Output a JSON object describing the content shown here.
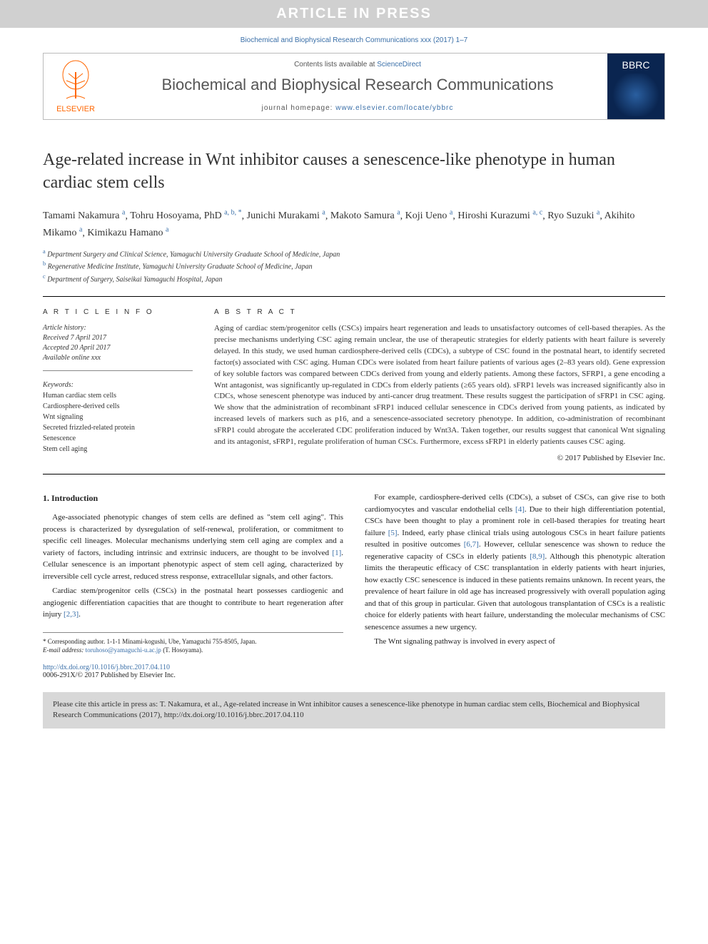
{
  "banner": "ARTICLE IN PRESS",
  "citation_header": "Biochemical and Biophysical Research Communications xxx (2017) 1–7",
  "header": {
    "contents_prefix": "Contents lists available at ",
    "contents_link": "ScienceDirect",
    "journal_name": "Biochemical and Biophysical Research Communications",
    "homepage_prefix": "journal homepage: ",
    "homepage_url": "www.elsevier.com/locate/ybbrc",
    "elsevier": "ELSEVIER",
    "cover_abbrev": "BBRC"
  },
  "title": "Age-related increase in Wnt inhibitor causes a senescence-like phenotype in human cardiac stem cells",
  "authors": [
    {
      "name": "Tamami Nakamura",
      "aff": "a"
    },
    {
      "name": "Tohru Hosoyama, PhD",
      "aff": "a, b, *"
    },
    {
      "name": "Junichi Murakami",
      "aff": "a"
    },
    {
      "name": "Makoto Samura",
      "aff": "a"
    },
    {
      "name": "Koji Ueno",
      "aff": "a"
    },
    {
      "name": "Hiroshi Kurazumi",
      "aff": "a, c"
    },
    {
      "name": "Ryo Suzuki",
      "aff": "a"
    },
    {
      "name": "Akihito Mikamo",
      "aff": "a"
    },
    {
      "name": "Kimikazu Hamano",
      "aff": "a"
    }
  ],
  "affiliations": [
    {
      "sup": "a",
      "text": "Department Surgery and Clinical Science, Yamaguchi University Graduate School of Medicine, Japan"
    },
    {
      "sup": "b",
      "text": "Regenerative Medicine Institute, Yamaguchi University Graduate School of Medicine, Japan"
    },
    {
      "sup": "c",
      "text": "Department of Surgery, Saiseikai Yamaguchi Hospital, Japan"
    }
  ],
  "article_info_label": "A R T I C L E   I N F O",
  "abstract_label": "A B S T R A C T",
  "history": {
    "label": "Article history:",
    "received": "Received 7 April 2017",
    "accepted": "Accepted 20 April 2017",
    "online": "Available online xxx"
  },
  "keywords_label": "Keywords:",
  "keywords": [
    "Human cardiac stem cells",
    "Cardiosphere-derived cells",
    "Wnt signaling",
    "Secreted frizzled-related protein",
    "Senescence",
    "Stem cell aging"
  ],
  "abstract": "Aging of cardiac stem/progenitor cells (CSCs) impairs heart regeneration and leads to unsatisfactory outcomes of cell-based therapies. As the precise mechanisms underlying CSC aging remain unclear, the use of therapeutic strategies for elderly patients with heart failure is severely delayed. In this study, we used human cardiosphere-derived cells (CDCs), a subtype of CSC found in the postnatal heart, to identify secreted factor(s) associated with CSC aging. Human CDCs were isolated from heart failure patients of various ages (2–83 years old). Gene expression of key soluble factors was compared between CDCs derived from young and elderly patients. Among these factors, SFRP1, a gene encoding a Wnt antagonist, was significantly up-regulated in CDCs from elderly patients (≥65 years old). sFRP1 levels was increased significantly also in CDCs, whose senescent phenotype was induced by anti-cancer drug treatment. These results suggest the participation of sFRP1 in CSC aging. We show that the administration of recombinant sFRP1 induced cellular senescence in CDCs derived from young patients, as indicated by increased levels of markers such as p16, and a senescence-associated secretory phenotype. In addition, co-administration of recombinant sFRP1 could abrogate the accelerated CDC proliferation induced by Wnt3A. Taken together, our results suggest that canonical Wnt signaling and its antagonist, sFRP1, regulate proliferation of human CSCs. Furthermore, excess sFRP1 in elderly patients causes CSC aging.",
  "abstract_copyright": "© 2017 Published by Elsevier Inc.",
  "section1_heading": "1. Introduction",
  "col1": {
    "p1": "Age-associated phenotypic changes of stem cells are defined as \"stem cell aging\". This process is characterized by dysregulation of self-renewal, proliferation, or commitment to specific cell lineages. Molecular mechanisms underlying stem cell aging are complex and a variety of factors, including intrinsic and extrinsic inducers, are thought to be involved [1]. Cellular senescence is an important phenotypic aspect of stem cell aging, characterized by irreversible cell cycle arrest, reduced stress response, extracellular signals, and other factors.",
    "p2": "Cardiac stem/progenitor cells (CSCs) in the postnatal heart possesses cardiogenic and angiogenic differentiation capacities that are thought to contribute to heart regeneration after injury [2,3]."
  },
  "col2": {
    "p1": "For example, cardiosphere-derived cells (CDCs), a subset of CSCs, can give rise to both cardiomyocytes and vascular endothelial cells [4]. Due to their high differentiation potential, CSCs have been thought to play a prominent role in cell-based therapies for treating heart failure [5]. Indeed, early phase clinical trials using autologous CSCs in heart failure patients resulted in positive outcomes [6,7]. However, cellular senescence was shown to reduce the regenerative capacity of CSCs in elderly patients [8,9]. Although this phenotypic alteration limits the therapeutic efficacy of CSC transplantation in elderly patients with heart injuries, how exactly CSC senescence is induced in these patients remains unknown. In recent years, the prevalence of heart failure in old age has increased progressively with overall population aging and that of this group in particular. Given that autologous transplantation of CSCs is a realistic choice for elderly patients with heart failure, understanding the molecular mechanisms of CSC senescence assumes a new urgency.",
    "p2": "The Wnt signaling pathway is involved in every aspect of"
  },
  "corresponding": {
    "label": "* Corresponding author. 1-1-1 Minami-kogushi, Ube, Yamaguchi 755-8505, Japan.",
    "email_label": "E-mail address:",
    "email": "toruhoso@yamaguchi-u.ac.jp",
    "email_name": "(T. Hosoyama)."
  },
  "doi": {
    "url": "http://dx.doi.org/10.1016/j.bbrc.2017.04.110",
    "issn_line": "0006-291X/© 2017 Published by Elsevier Inc."
  },
  "cite_box": "Please cite this article in press as: T. Nakamura, et al., Age-related increase in Wnt inhibitor causes a senescence-like phenotype in human cardiac stem cells, Biochemical and Biophysical Research Communications (2017), http://dx.doi.org/10.1016/j.bbrc.2017.04.110",
  "colors": {
    "link": "#3a6fa8",
    "elsevier_orange": "#ff6600",
    "banner_bg": "#d0d0d0",
    "cite_bg": "#d8d8d8"
  }
}
